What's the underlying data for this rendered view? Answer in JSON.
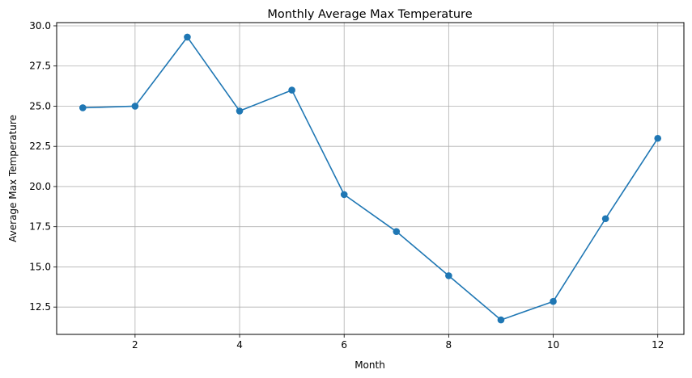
{
  "chart_data": {
    "type": "line",
    "title": "Monthly Average Max Temperature",
    "xlabel": "Month",
    "ylabel": "Average Max Temperature",
    "xlim": [
      0.5,
      12.5
    ],
    "ylim": [
      10.8,
      30.2
    ],
    "xticks": [
      2,
      4,
      6,
      8,
      10,
      12
    ],
    "xtick_labels": [
      "2",
      "4",
      "6",
      "8",
      "10",
      "12"
    ],
    "yticks": [
      12.5,
      15.0,
      17.5,
      20.0,
      22.5,
      25.0,
      27.5,
      30.0
    ],
    "ytick_labels": [
      "12.5",
      "15.0",
      "17.5",
      "20.0",
      "22.5",
      "25.0",
      "27.5",
      "30.0"
    ],
    "grid": true,
    "series": [
      {
        "color": "#1f77b4",
        "marker": "circle",
        "x": [
          1,
          2,
          3,
          4,
          5,
          6,
          7,
          8,
          9,
          10,
          11,
          12
        ],
        "values": [
          24.9,
          25.0,
          29.3,
          24.7,
          26.0,
          19.5,
          17.2,
          14.45,
          11.7,
          12.85,
          18.0,
          23.0
        ]
      }
    ]
  }
}
